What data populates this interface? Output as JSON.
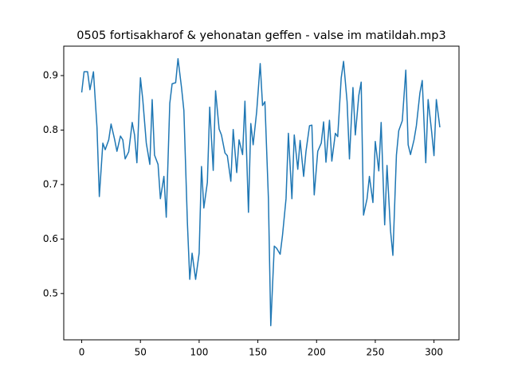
{
  "chart_data": {
    "type": "line",
    "title": "0505 fortisakharof & yehonatan geffen - valse im matildah.mp3",
    "x": [
      0,
      2,
      5,
      7,
      10,
      13,
      15,
      18,
      20,
      23,
      25,
      28,
      30,
      33,
      35,
      37,
      40,
      43,
      45,
      47,
      50,
      52,
      55,
      58,
      60,
      62,
      65,
      67,
      70,
      72,
      75,
      77,
      80,
      82,
      85,
      87,
      90,
      92,
      94,
      97,
      100,
      102,
      104,
      107,
      109,
      112,
      114,
      117,
      119,
      122,
      124,
      127,
      129,
      132,
      134,
      137,
      139,
      142,
      144,
      146,
      149,
      152,
      154,
      156,
      159,
      161,
      164,
      166,
      169,
      171,
      174,
      176,
      179,
      181,
      184,
      186,
      189,
      191,
      194,
      196,
      198,
      201,
      204,
      206,
      208,
      211,
      213,
      216,
      218,
      221,
      223,
      226,
      228,
      231,
      233,
      236,
      238,
      240,
      243,
      245,
      248,
      250,
      253,
      255,
      258,
      260,
      263,
      265,
      268,
      270,
      273,
      276,
      278,
      280,
      283,
      285,
      288,
      290,
      293,
      295,
      298,
      300,
      302,
      305
    ],
    "series": [
      {
        "color": "#1f77b4",
        "values": [
          0.869,
          0.907,
          0.907,
          0.874,
          0.907,
          0.805,
          0.678,
          0.776,
          0.764,
          0.782,
          0.811,
          0.783,
          0.761,
          0.789,
          0.782,
          0.747,
          0.76,
          0.814,
          0.791,
          0.74,
          0.896,
          0.856,
          0.776,
          0.737,
          0.856,
          0.754,
          0.737,
          0.674,
          0.715,
          0.64,
          0.849,
          0.885,
          0.887,
          0.931,
          0.878,
          0.836,
          0.63,
          0.526,
          0.574,
          0.526,
          0.574,
          0.733,
          0.657,
          0.704,
          0.842,
          0.726,
          0.872,
          0.802,
          0.791,
          0.758,
          0.753,
          0.706,
          0.801,
          0.722,
          0.782,
          0.755,
          0.853,
          0.649,
          0.812,
          0.773,
          0.834,
          0.922,
          0.845,
          0.852,
          0.674,
          0.441,
          0.587,
          0.583,
          0.572,
          0.607,
          0.674,
          0.794,
          0.674,
          0.791,
          0.728,
          0.781,
          0.715,
          0.761,
          0.808,
          0.809,
          0.681,
          0.761,
          0.776,
          0.815,
          0.741,
          0.818,
          0.743,
          0.794,
          0.788,
          0.896,
          0.926,
          0.852,
          0.747,
          0.878,
          0.791,
          0.864,
          0.888,
          0.644,
          0.674,
          0.715,
          0.667,
          0.779,
          0.725,
          0.814,
          0.626,
          0.735,
          0.615,
          0.57,
          0.754,
          0.799,
          0.817,
          0.91,
          0.773,
          0.755,
          0.782,
          0.808,
          0.868,
          0.891,
          0.74,
          0.856,
          0.797,
          0.753,
          0.856,
          0.805
        ]
      }
    ],
    "xlim": [
      -15.3,
      321.3
    ],
    "ylim": [
      0.415,
      0.954
    ],
    "xticks": [
      0,
      50,
      100,
      150,
      200,
      250,
      300
    ],
    "yticks": [
      0.5,
      0.6,
      0.7,
      0.8,
      0.9
    ]
  }
}
